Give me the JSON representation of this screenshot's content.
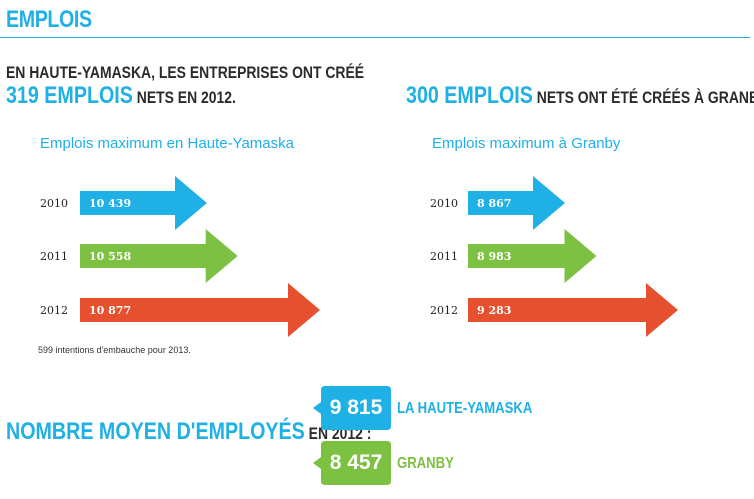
{
  "header": {
    "title": "EMPLOIS"
  },
  "headline_left": {
    "line1": "EN HAUTE-YAMASKA, LES ENTREPRISES ONT CRÉÉ",
    "big": "319 EMPLOIS",
    "rest": " NETS EN 2012."
  },
  "headline_right": {
    "big": "300 EMPLOIS",
    "rest": " NETS ONT ÉTÉ CRÉÉS À GRANBY !"
  },
  "colors": {
    "blue": "#1fb0e6",
    "green": "#7dc142",
    "orange": "#e6502f"
  },
  "chart_data": [
    {
      "type": "bar",
      "title": "Emplois maximum en Haute-Yamaska",
      "categories": [
        "2010",
        "2011",
        "2012"
      ],
      "values": [
        10439,
        10558,
        10877
      ],
      "value_labels": [
        "10 439",
        "10 558",
        "10 877"
      ]
    },
    {
      "type": "bar",
      "title": "Emplois maximum à Granby",
      "categories": [
        "2010",
        "2011",
        "2012"
      ],
      "values": [
        8867,
        8983,
        9283
      ],
      "value_labels": [
        "8 867",
        "8 983",
        "9 283"
      ]
    }
  ],
  "note": "599 intentions d'embauche pour 2013.",
  "average": {
    "big": "NOMBRE MOYEN D'EMPLOYÉS",
    "rest": " EN 2012 :",
    "items": [
      {
        "value": "9 815",
        "label": "LA HAUTE-YAMASKA"
      },
      {
        "value": "8 457",
        "label": "GRANBY"
      }
    ]
  }
}
